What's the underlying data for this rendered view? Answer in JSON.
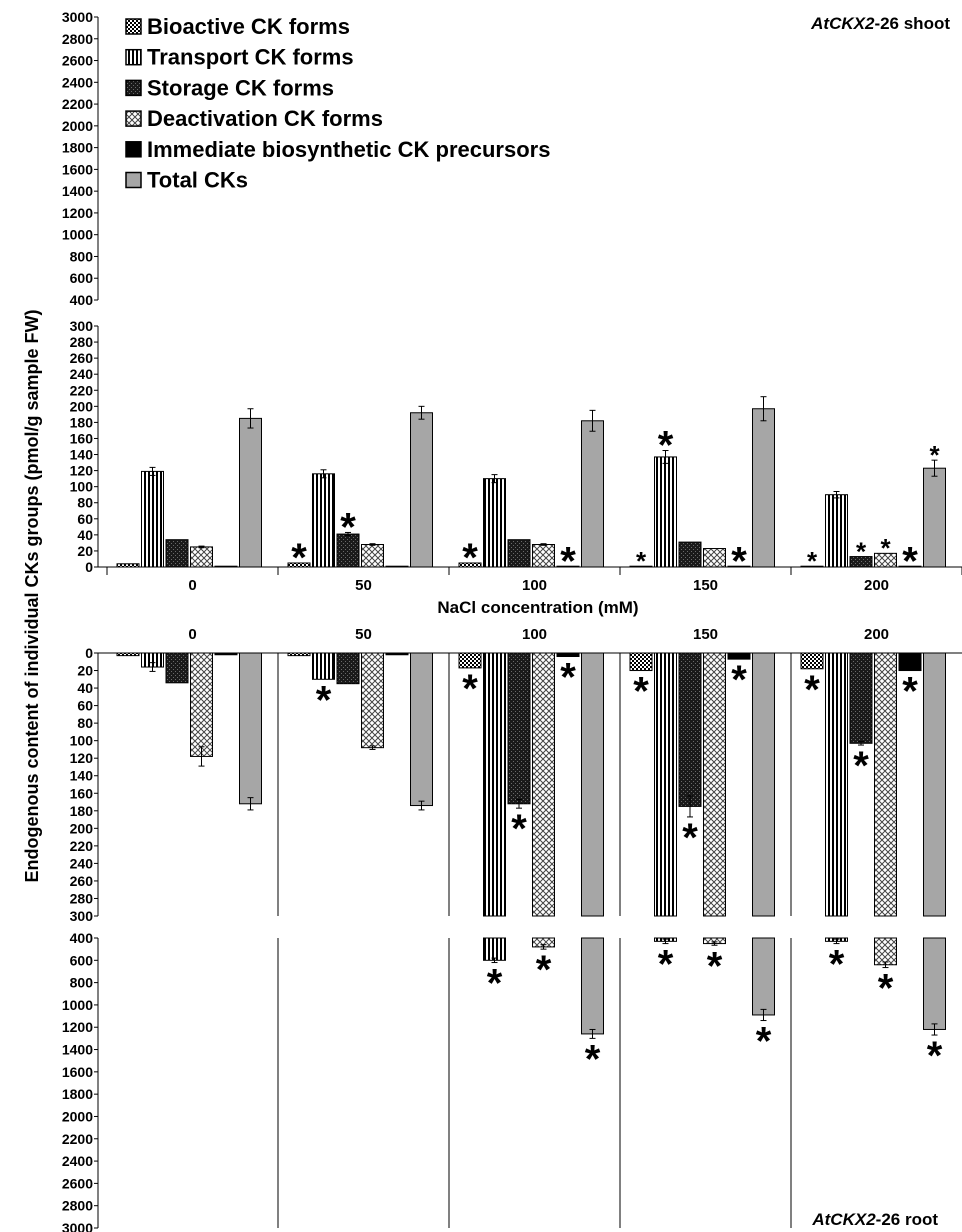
{
  "chart_data": {
    "type": "bar",
    "ylabel": "Endogenous content of individual CKs groups (pmol/g sample FW)",
    "xlabel": "NaCl concentration (mM)",
    "categories": [
      "0",
      "50",
      "100",
      "150",
      "200"
    ],
    "legend": {
      "placement": "top-left",
      "entries": [
        {
          "name": "Bioactive CK   forms",
          "pattern": "checker"
        },
        {
          "name": "Transport CK   forms",
          "pattern": "vstripe"
        },
        {
          "name": "Storage CK   forms",
          "pattern": "dark"
        },
        {
          "name": "Deactivation CK   forms",
          "pattern": "diamond"
        },
        {
          "name": "Immediate biosynthetic CK  precursors",
          "pattern": "black"
        },
        {
          "name": "Total CKs",
          "pattern": "gray"
        }
      ]
    },
    "shoot": {
      "title_italic": "AtCKX2",
      "title_rest": "-26 shoot",
      "upper_ticks": [
        "3000",
        "2800",
        "2600",
        "2400",
        "2200",
        "2000",
        "1800",
        "1600",
        "1400",
        "1200",
        "1000",
        "800",
        "600",
        "400"
      ],
      "ylim_upper": [
        400,
        3000
      ],
      "ylim_lower": [
        0,
        300
      ],
      "lower_ticks": [
        "300",
        "280",
        "260",
        "240",
        "220",
        "200",
        "180",
        "160",
        "140",
        "120",
        "100",
        "80",
        "60",
        "40",
        "20",
        "0"
      ],
      "series": [
        {
          "name": "Bioactive CK   forms",
          "values": [
            4,
            5,
            5,
            1,
            1
          ],
          "err": [
            0,
            0,
            0,
            0,
            0
          ],
          "sig": [
            false,
            true,
            true,
            true,
            true
          ],
          "sig_size": [
            "",
            "large",
            "large",
            "small",
            "small"
          ]
        },
        {
          "name": "Transport CK   forms",
          "values": [
            119,
            116,
            110,
            137,
            90
          ],
          "err": [
            5,
            5,
            5,
            8,
            4
          ],
          "sig": [
            false,
            false,
            false,
            true,
            false
          ],
          "sig_size": [
            "",
            "",
            "",
            "large",
            ""
          ]
        },
        {
          "name": "Storage CK   forms",
          "values": [
            34,
            41,
            34,
            31,
            13
          ],
          "err": [
            0,
            2,
            0,
            0,
            0
          ],
          "sig": [
            false,
            true,
            false,
            false,
            true
          ],
          "sig_size": [
            "",
            "large",
            "",
            "",
            "small"
          ]
        },
        {
          "name": "Deactivation CK   forms",
          "values": [
            25,
            28,
            28,
            23,
            17
          ],
          "err": [
            1,
            1,
            1,
            0,
            0
          ],
          "sig": [
            false,
            false,
            false,
            false,
            true
          ],
          "sig_size": [
            "",
            "",
            "",
            "",
            "small"
          ]
        },
        {
          "name": "Immediate biosynthetic CK  precursors",
          "values": [
            1,
            1,
            1,
            1,
            1
          ],
          "err": [
            0,
            0,
            0,
            0,
            0
          ],
          "sig": [
            false,
            false,
            true,
            true,
            true
          ],
          "sig_size": [
            "",
            "",
            "large",
            "large",
            "large"
          ]
        },
        {
          "name": "Total CKs",
          "values": [
            185,
            192,
            182,
            197,
            123
          ],
          "err": [
            12,
            8,
            13,
            15,
            10
          ],
          "sig": [
            false,
            false,
            false,
            false,
            true
          ],
          "sig_size": [
            "",
            "",
            "",
            "",
            "small"
          ]
        }
      ]
    },
    "root": {
      "title_italic": "AtCKX2",
      "title_rest": "-26 root",
      "upper_ticks": [
        "0",
        "20",
        "40",
        "60",
        "80",
        "100",
        "120",
        "140",
        "160",
        "180",
        "200",
        "220",
        "240",
        "260",
        "280",
        "300"
      ],
      "ylim_upper": [
        0,
        300
      ],
      "ylim_lower": [
        400,
        3000
      ],
      "lower_ticks": [
        "400",
        "600",
        "800",
        "1000",
        "1200",
        "1400",
        "1600",
        "1800",
        "2000",
        "2200",
        "2400",
        "2600",
        "2800",
        "3000"
      ],
      "series": [
        {
          "name": "Bioactive CK   forms",
          "values": [
            3,
            3,
            17,
            20,
            18
          ],
          "err": [
            0,
            0,
            0,
            0,
            0
          ],
          "sig": [
            false,
            false,
            true,
            true,
            true
          ]
        },
        {
          "name": "Transport CK   forms",
          "values": [
            16,
            30,
            600,
            430,
            430
          ],
          "err": [
            5,
            0,
            20,
            20,
            20
          ],
          "sig": [
            false,
            true,
            true,
            true,
            true
          ]
        },
        {
          "name": "Storage CK   forms",
          "values": [
            34,
            35,
            172,
            175,
            103
          ],
          "err": [
            0,
            0,
            5,
            12,
            2
          ],
          "sig": [
            false,
            false,
            true,
            true,
            true
          ]
        },
        {
          "name": "Deactivation CK   forms",
          "values": [
            118,
            108,
            480,
            450,
            640
          ],
          "err": [
            11,
            2,
            20,
            15,
            25
          ],
          "sig": [
            false,
            false,
            true,
            true,
            true
          ]
        },
        {
          "name": "Immediate biosynthetic CK  precursors",
          "values": [
            2,
            2,
            4,
            7,
            20
          ],
          "err": [
            0,
            0,
            0,
            0,
            0
          ],
          "sig": [
            false,
            false,
            true,
            true,
            true
          ]
        },
        {
          "name": "Total CKs",
          "values": [
            172,
            174,
            1260,
            1090,
            1220
          ],
          "err": [
            7,
            5,
            40,
            50,
            50
          ],
          "sig": [
            false,
            false,
            true,
            true,
            true
          ]
        }
      ]
    }
  }
}
